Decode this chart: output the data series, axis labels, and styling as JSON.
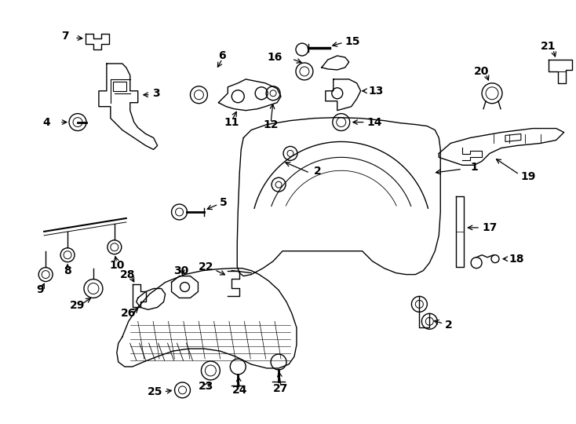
{
  "background_color": "#ffffff",
  "line_color": "#000000",
  "figsize": [
    7.34,
    5.4
  ],
  "dpi": 100
}
